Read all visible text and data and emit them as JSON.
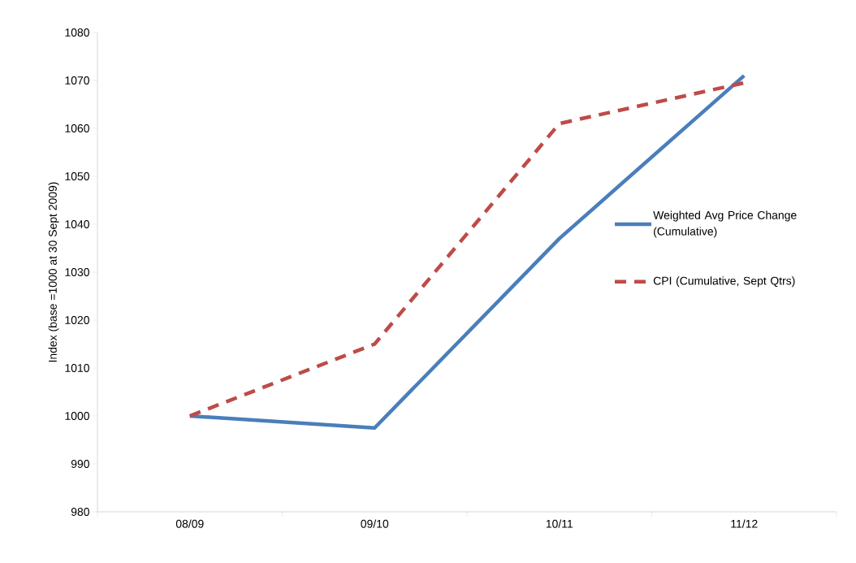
{
  "chart_data": {
    "type": "line",
    "ylabel": "Index (base =1000 at 30 Sept 2009)",
    "categories": [
      "08/09",
      "09/10",
      "10/11",
      "11/12"
    ],
    "series": [
      {
        "name": "Weighted Avg Price Change (Cumulative)",
        "color": "#4a7ebb",
        "values": [
          1000,
          997.5,
          1037,
          1071
        ],
        "line_style": "solid"
      },
      {
        "name": "CPI (Cumulative, Sept Qtrs)",
        "color": "#be4b48",
        "values": [
          1000,
          1015,
          1061,
          1069.5
        ],
        "line_style": "dashed"
      }
    ],
    "ylim": [
      980,
      1080
    ],
    "yticks": [
      980,
      990,
      1000,
      1010,
      1020,
      1030,
      1040,
      1050,
      1060,
      1070,
      1080
    ],
    "grid": false,
    "legend": "right",
    "marker": "none"
  }
}
